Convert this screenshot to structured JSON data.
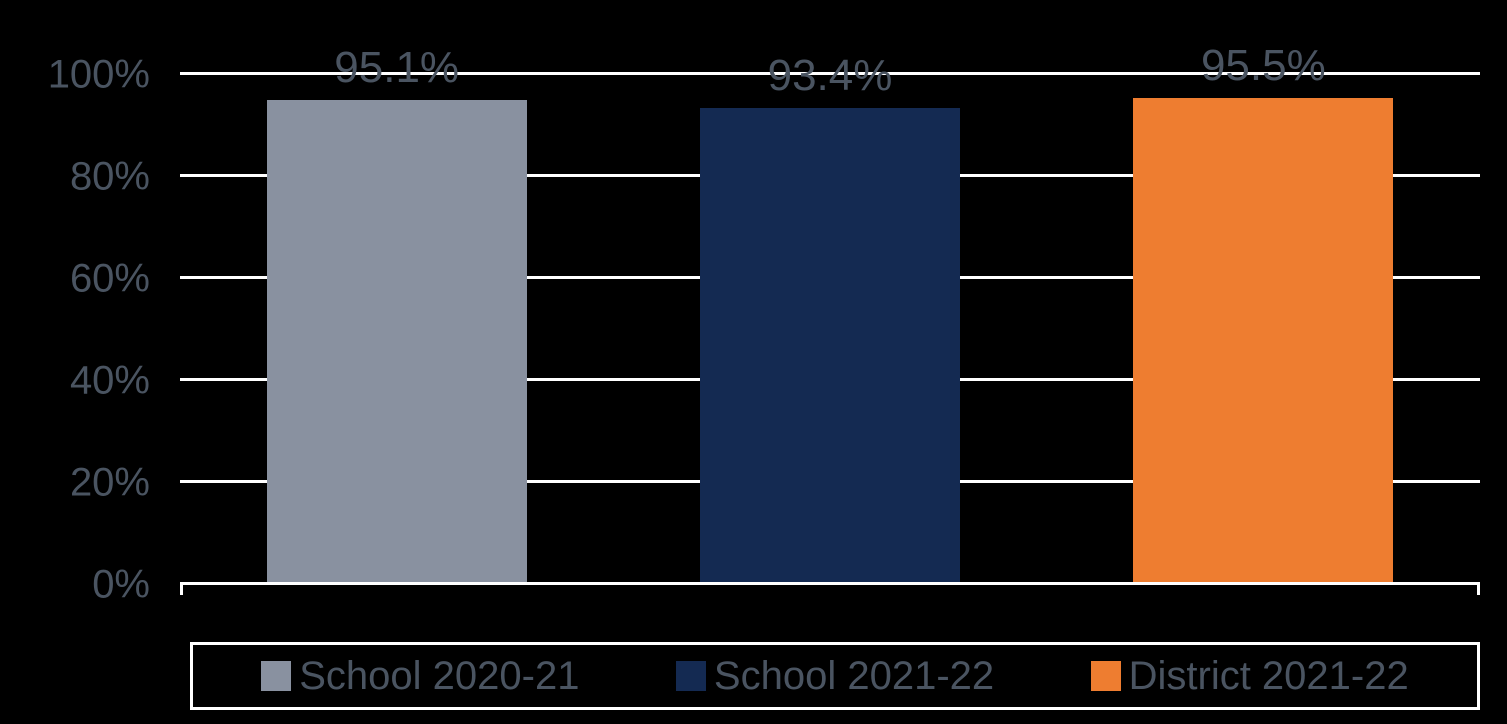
{
  "chart": {
    "type": "bar",
    "background_color": "#000000",
    "gridline_color": "#ffffff",
    "text_color": "#4a5461",
    "tick_fontsize": 40,
    "label_fontsize": 44,
    "legend_fontsize": 40,
    "y_axis": {
      "min": 0,
      "max": 100,
      "tick_step": 20,
      "ticks": [
        {
          "value": 0,
          "label": "0%"
        },
        {
          "value": 20,
          "label": "20%"
        },
        {
          "value": 40,
          "label": "40%"
        },
        {
          "value": 60,
          "label": "60%"
        },
        {
          "value": 80,
          "label": "80%"
        },
        {
          "value": 100,
          "label": "100%"
        }
      ]
    },
    "bars": [
      {
        "value": 95.1,
        "label": "95.1%",
        "color": "#8991a0"
      },
      {
        "value": 93.4,
        "label": "93.4%",
        "color": "#142a52"
      },
      {
        "value": 95.5,
        "label": "95.5%",
        "color": "#ee7d30"
      }
    ],
    "legend": [
      {
        "label": "School 2020-21",
        "color": "#8991a0"
      },
      {
        "label": "School 2021-22",
        "color": "#142a52"
      },
      {
        "label": "District 2021-22",
        "color": "#ee7d30"
      }
    ]
  }
}
